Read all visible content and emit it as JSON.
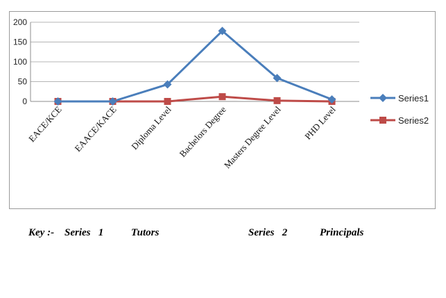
{
  "chart_data": {
    "type": "line",
    "categories": [
      "EACE/KCE",
      "EAACE/KACE",
      "Diploma Level",
      "Bachelors Degree",
      "Masters Degree Level",
      "PHD Level"
    ],
    "series": [
      {
        "name": "Series1",
        "values": [
          0,
          0,
          43,
          178,
          59,
          5
        ],
        "color": "#4a7ebb",
        "marker": "diamond"
      },
      {
        "name": "Series2",
        "values": [
          0,
          0,
          0,
          12,
          2,
          0
        ],
        "color": "#be4b48",
        "marker": "square"
      }
    ],
    "yticks": [
      "0",
      "50",
      "100",
      "150",
      "200"
    ],
    "ylim": [
      0,
      200
    ],
    "grid": true,
    "legend_position": "right"
  },
  "key": {
    "label": "Key :-",
    "series1_label": "Series   1",
    "series1_desc": "Tutors",
    "series2_label": "Series   2",
    "series2_desc": "Principals"
  }
}
